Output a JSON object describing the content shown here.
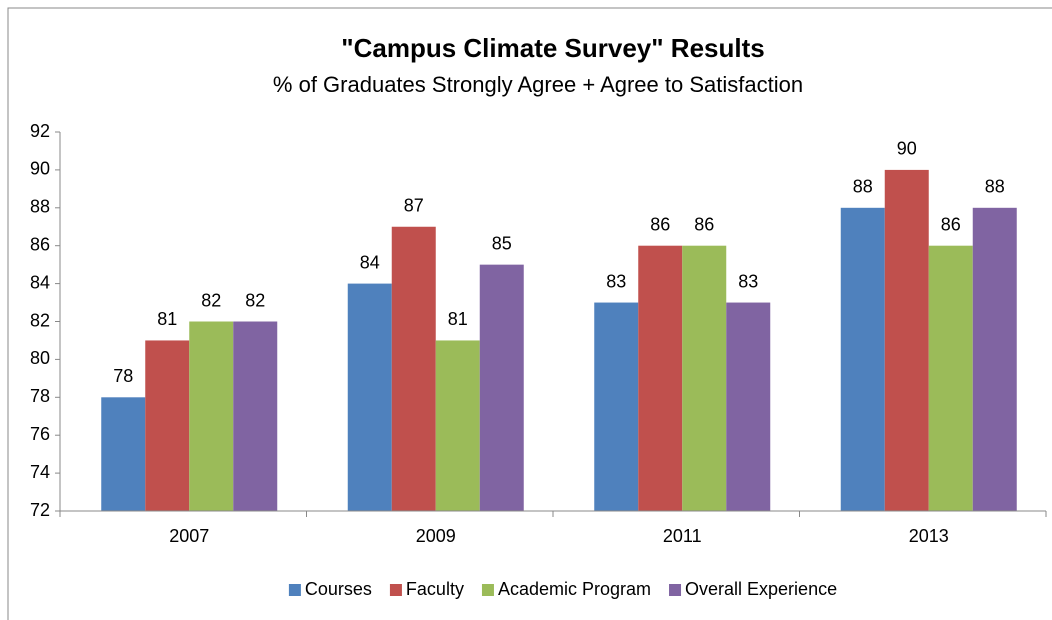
{
  "chart_data": {
    "type": "bar",
    "title": "\"Campus Climate Survey\" Results",
    "subtitle": "% of Graduates Strongly Agree + Agree to Satisfaction",
    "categories": [
      "2007",
      "2009",
      "2011",
      "2013"
    ],
    "series": [
      {
        "name": "Courses",
        "color": "#4f81bd",
        "values": [
          78,
          84,
          83,
          88
        ]
      },
      {
        "name": "Faculty",
        "color": "#c0504d",
        "values": [
          81,
          87,
          86,
          90
        ]
      },
      {
        "name": "Academic Program",
        "color": "#9bbb59",
        "values": [
          82,
          81,
          86,
          86
        ]
      },
      {
        "name": "Overall Experience",
        "color": "#8064a2",
        "values": [
          82,
          85,
          83,
          88
        ]
      }
    ],
    "ylim": [
      72,
      92
    ],
    "yticks": [
      72,
      74,
      76,
      78,
      80,
      82,
      84,
      86,
      88,
      90,
      92
    ],
    "grid": false,
    "legend": "bottom"
  }
}
